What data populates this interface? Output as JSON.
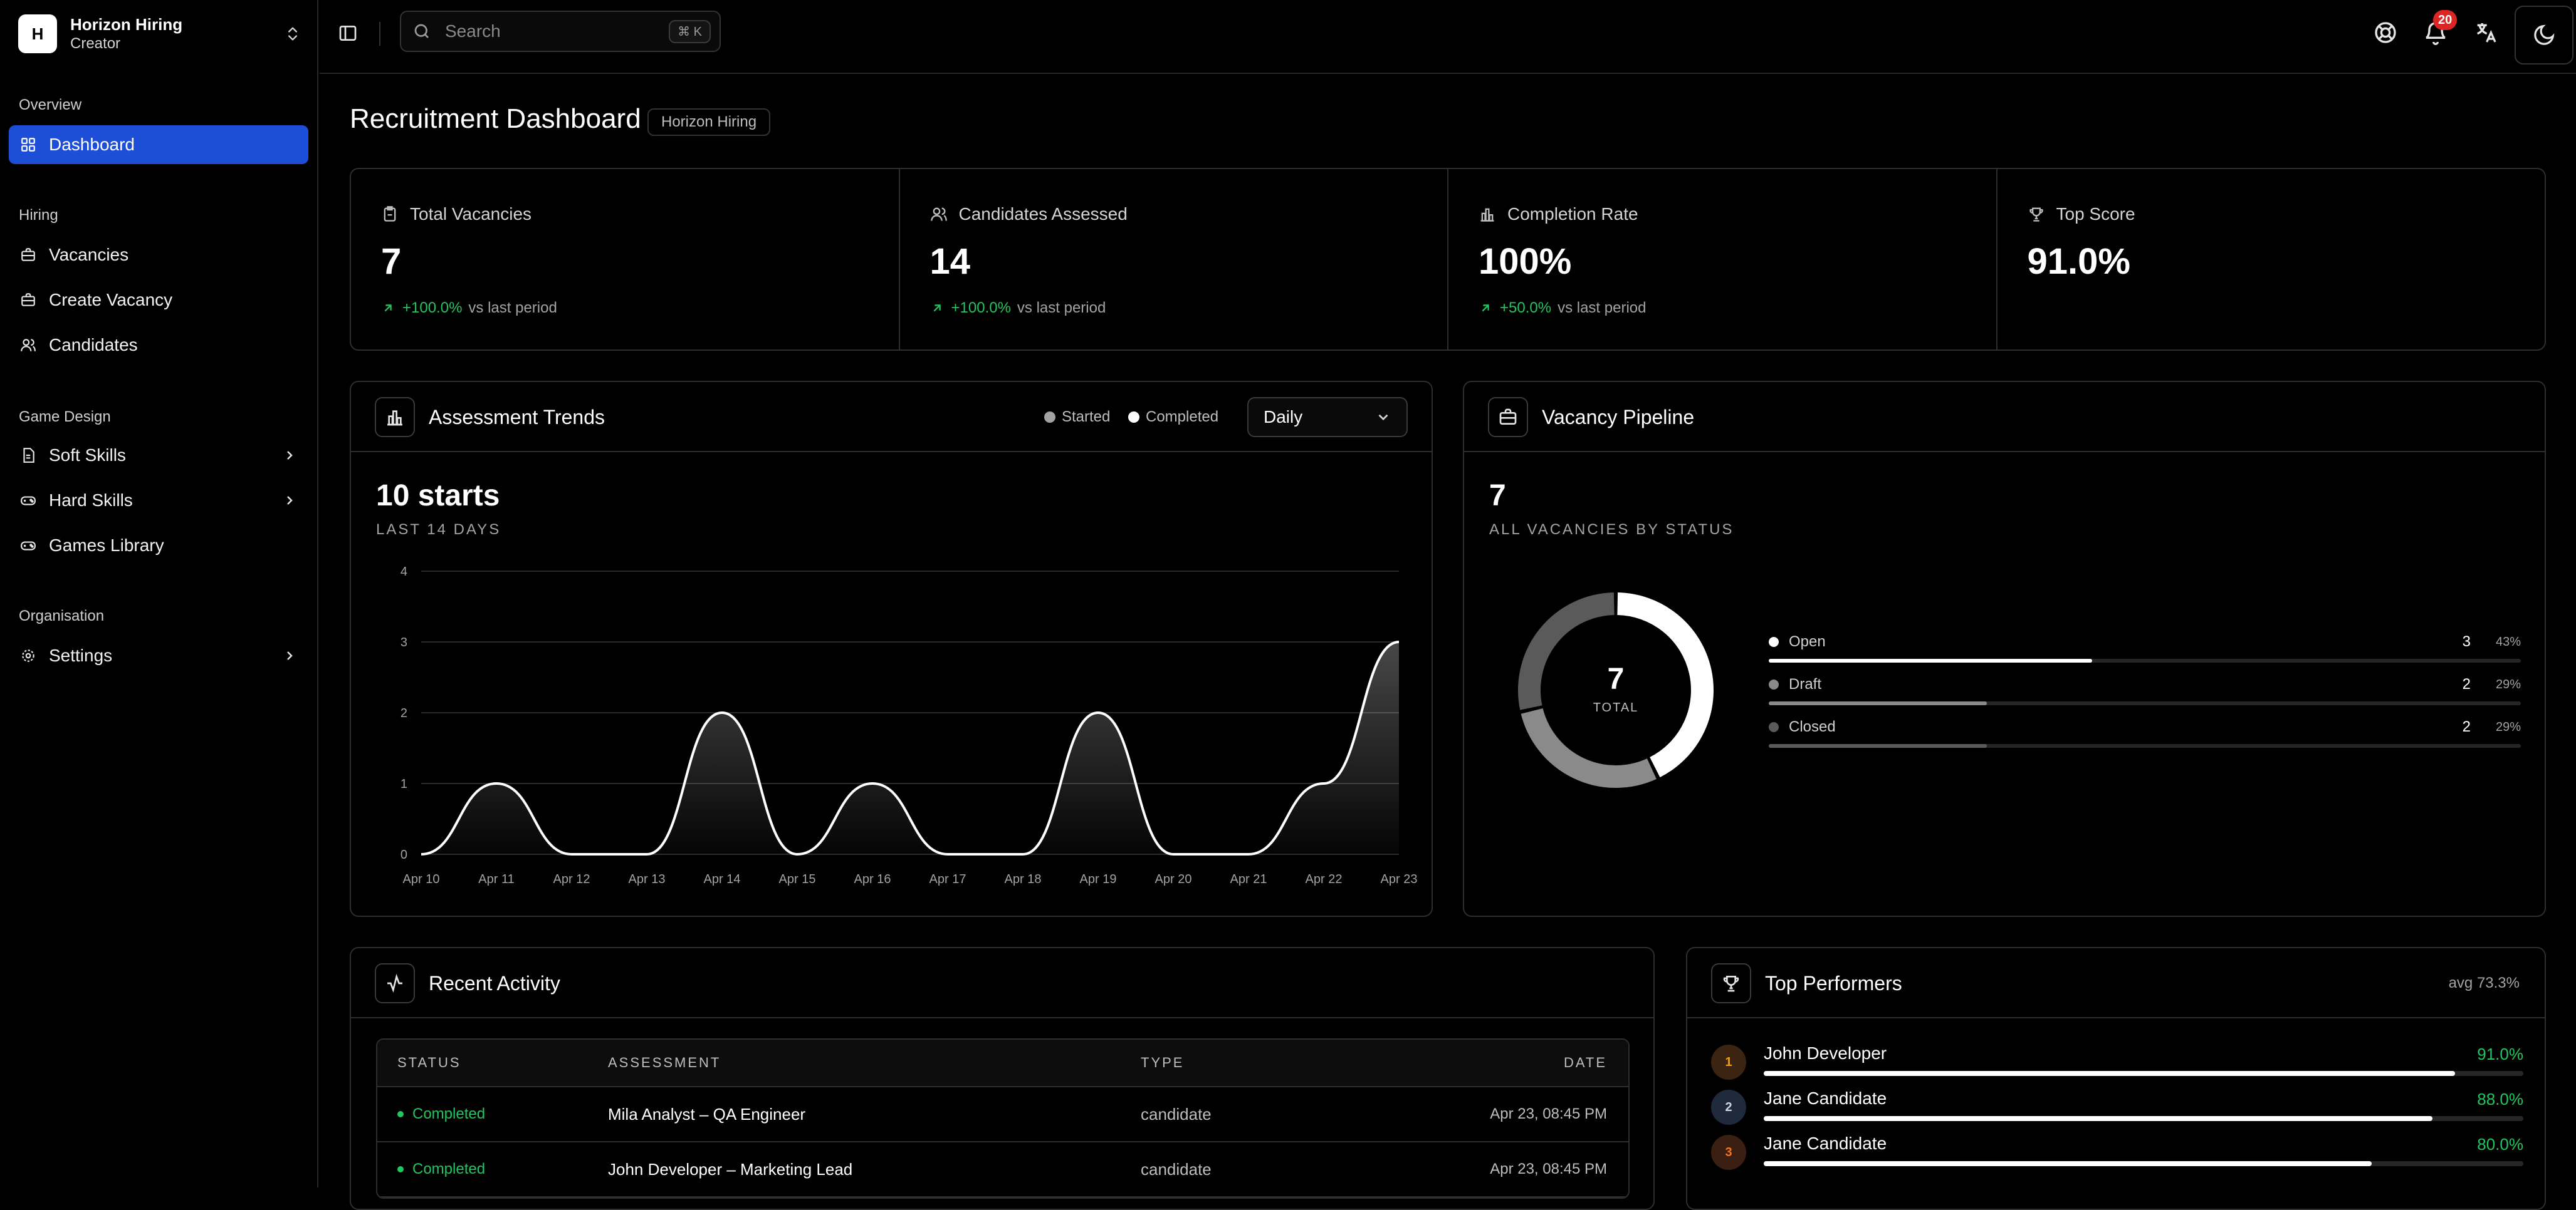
{
  "org": {
    "initial": "H",
    "name": "Horizon Hiring",
    "role": "Creator"
  },
  "nav": {
    "overview_label": "Overview",
    "dashboard": "Dashboard",
    "hiring_label": "Hiring",
    "vacancies": "Vacancies",
    "create_vacancy": "Create Vacancy",
    "candidates": "Candidates",
    "game_design_label": "Game Design",
    "soft_skills": "Soft Skills",
    "hard_skills": "Hard Skills",
    "games_library": "Games Library",
    "organisation_label": "Organisation",
    "settings": "Settings"
  },
  "topbar": {
    "search_placeholder": "Search",
    "search_shortcut": "⌘ K",
    "notification_count": "20"
  },
  "page": {
    "title": "Recruitment Dashboard",
    "tag": "Horizon Hiring"
  },
  "kpis": [
    {
      "label": "Total Vacancies",
      "value": "7",
      "delta": "+100.0%",
      "delta_suffix": "vs last period",
      "icon": "clipboard-icon"
    },
    {
      "label": "Candidates Assessed",
      "value": "14",
      "delta": "+100.0%",
      "delta_suffix": "vs last period",
      "icon": "users-icon"
    },
    {
      "label": "Completion Rate",
      "value": "100%",
      "delta": "+50.0%",
      "delta_suffix": "vs last period",
      "icon": "bar-chart-icon"
    },
    {
      "label": "Top Score",
      "value": "91.0%",
      "icon": "trophy-icon"
    }
  ],
  "trends": {
    "title": "Assessment Trends",
    "legend_started": "Started",
    "legend_completed": "Completed",
    "period": "Daily",
    "headline": "10 starts",
    "caption": "LAST 14 DAYS"
  },
  "chart_data": {
    "type": "area",
    "x": [
      "Apr 10",
      "Apr 11",
      "Apr 12",
      "Apr 13",
      "Apr 14",
      "Apr 15",
      "Apr 16",
      "Apr 17",
      "Apr 18",
      "Apr 19",
      "Apr 20",
      "Apr 21",
      "Apr 22",
      "Apr 23"
    ],
    "series": [
      {
        "name": "Started",
        "values": [
          0,
          1,
          0,
          0,
          2,
          0,
          1,
          0,
          0,
          2,
          0,
          0,
          1,
          3
        ]
      }
    ],
    "yticks": [
      "0",
      "1",
      "2",
      "3",
      "4"
    ],
    "ylim": [
      0,
      4
    ],
    "grid": true
  },
  "pipeline": {
    "title": "Vacancy Pipeline",
    "headline": "7",
    "caption": "ALL VACANCIES BY STATUS",
    "donut_total": "7",
    "donut_total_label": "TOTAL",
    "items": [
      {
        "name": "Open",
        "count": "3",
        "pct": "43%",
        "value": 3,
        "fraction": 0.43,
        "color": "#ffffff"
      },
      {
        "name": "Draft",
        "count": "2",
        "pct": "29%",
        "value": 2,
        "fraction": 0.29,
        "color": "#8a8a8a"
      },
      {
        "name": "Closed",
        "count": "2",
        "pct": "29%",
        "value": 2,
        "fraction": 0.29,
        "color": "#5a5a5a"
      }
    ]
  },
  "activity": {
    "title": "Recent Activity",
    "headers": {
      "status": "STATUS",
      "assessment": "ASSESSMENT",
      "type": "TYPE",
      "date": "DATE"
    },
    "rows": [
      {
        "status": "Completed",
        "assessment": "Mila Analyst – QA Engineer",
        "type": "candidate",
        "date": "Apr 23, 08:45 PM"
      },
      {
        "status": "Completed",
        "assessment": "John Developer – Marketing Lead",
        "type": "candidate",
        "date": "Apr 23, 08:45 PM"
      }
    ]
  },
  "performers": {
    "title": "Top Performers",
    "avg": "avg 73.3%",
    "items": [
      {
        "rank": "1",
        "name": "John Developer",
        "score": "91.0%",
        "fraction": 0.91,
        "rank_color": "#3b2412",
        "rank_text": "#f59e0b"
      },
      {
        "rank": "2",
        "name": "Jane Candidate",
        "score": "88.0%",
        "fraction": 0.88,
        "rank_color": "#1f2a3d",
        "rank_text": "#cbd5e1"
      },
      {
        "rank": "3",
        "name": "Jane Candidate",
        "score": "80.0%",
        "fraction": 0.8,
        "rank_color": "#3b1f12",
        "rank_text": "#f97316"
      }
    ]
  }
}
